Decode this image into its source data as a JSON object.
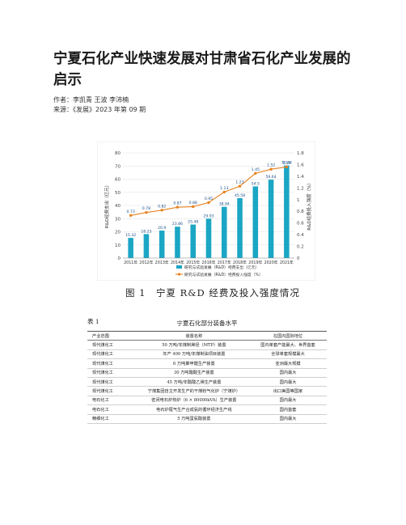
{
  "article": {
    "title": "宁夏石化产业快速发展对甘肃省石化产业发展的启示",
    "author_line": "作者：李凯青 王波 李沛楠",
    "source_line": "来源：《发展》2023 年第 09 期"
  },
  "figure": {
    "caption": "图 1　宁夏 R&D 经费及投入强度情况",
    "chart_data": {
      "type": "bar",
      "categories": [
        "2011年",
        "2012年",
        "2013年",
        "2014年",
        "2015年",
        "2016年",
        "2017年",
        "2018年",
        "2019年",
        "2020年",
        "2021年"
      ],
      "series": [
        {
          "name": "研究与试验发展（R&D）经费支出（亿元）",
          "type": "bar",
          "axis": "left",
          "color": "#1aa6c4",
          "values": [
            15.32,
            18.23,
            20.9,
            23.86,
            25.48,
            29.93,
            38.94,
            45.58,
            54.5,
            59.64,
            70.44
          ]
        },
        {
          "name": "研究与试验发展（R&D）经费投入强度（%）",
          "type": "line",
          "axis": "right",
          "color": "#e8821e",
          "values": [
            0.73,
            0.78,
            0.82,
            0.87,
            0.88,
            0.95,
            1.13,
            1.23,
            1.45,
            1.52,
            1.56
          ]
        }
      ],
      "bar_labels": [
        "15.32",
        "18.23",
        "20.9",
        "23.86",
        "25.48",
        "29.93",
        "38.94",
        "45.58",
        "54.5",
        "59.64",
        "70.44"
      ],
      "line_labels": [
        "0.73",
        "0.78",
        "0.82",
        "0.87",
        "0.88",
        "0.95",
        "1.13",
        "1.23",
        "1.45",
        "1.52",
        "1.56"
      ],
      "ylabel": "R&D经费支出（亿元）",
      "y2label": "R&D经费投入强度（%）",
      "ylim": [
        0,
        80
      ],
      "y2lim": [
        0,
        1.8
      ],
      "yticks": [
        "0",
        "10",
        "20",
        "30",
        "40",
        "50",
        "60",
        "70",
        "80"
      ],
      "y2ticks": [
        "0",
        "0.2",
        "0.4",
        "0.6",
        "0.8",
        "1",
        "1.2",
        "1.4",
        "1.6",
        "1.8"
      ],
      "grid": true,
      "legend_position": "bottom",
      "legend": [
        "研究与试验发展（R&D）经费支出（亿元）",
        "研究与试验发展（R&D）经费投入强度（%）"
      ]
    }
  },
  "table": {
    "label": "表 1",
    "title": "宁夏石化部分装备水平",
    "headers": [
      "产业范围",
      "装置名称",
      "在国内国际地位"
    ],
    "rows": [
      [
        "现代煤化工",
        "50 万吨/年煤制烯烃（MTP）装置",
        "国内单套产能最大、世界首套"
      ],
      [
        "现代煤化工",
        "年产 400 万吨/年煤制油项目装置",
        "全球单套规模最大"
      ],
      [
        "现代煤化工",
        "6 万吨聚甲醛生产装置",
        "亚洲最大规模"
      ],
      [
        "现代煤化工",
        "30 万吨醋酸生产装置",
        "国内最大"
      ],
      [
        "现代煤化工",
        "45 万吨/年醋酸乙烯生产装置",
        "国内最大"
      ],
      [
        "现代煤化工",
        "宁煤集团自主开发生产的干煤粉气化炉（宁煤炉）",
        "出口美国等国家"
      ],
      [
        "电石化工",
        "密闭电石炉热炉（6 × 80000kVA）生产装置",
        "国内最大"
      ],
      [
        "电石化工",
        "电石炉尾气生产合成氨的循环经济生产线",
        "国内首套"
      ],
      [
        "精细化工",
        "5 万吨蛋氨酸装置",
        "国内最大"
      ]
    ]
  }
}
